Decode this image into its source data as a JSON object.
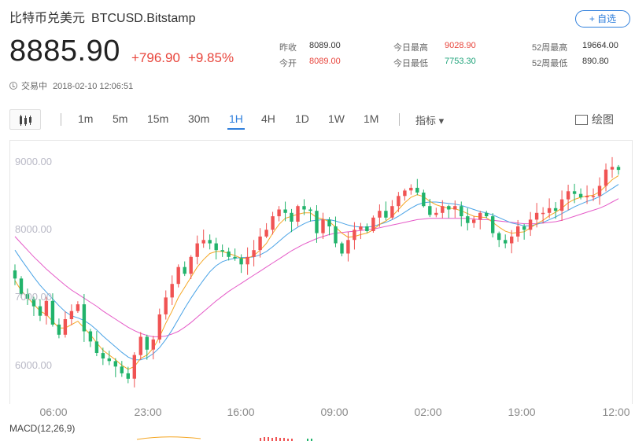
{
  "header": {
    "name": "比特币兑美元",
    "symbol": "BTCUSD.Bitstamp",
    "add_watchlist": "+ 自选"
  },
  "quote": {
    "price": "8885.90",
    "change": "+796.90",
    "change_pct": "+9.85%"
  },
  "stats": {
    "prev_close_label": "昨收",
    "prev_close": "8089.00",
    "open_label": "今开",
    "open": "8089.00",
    "day_high_label": "今日最高",
    "day_high": "9028.90",
    "day_low_label": "今日最低",
    "day_low": "7753.30",
    "week52_high_label": "52周最高",
    "week52_high": "19664.00",
    "week52_low_label": "52周最低",
    "week52_low": "890.80"
  },
  "status": {
    "state": "交易中",
    "timestamp": "2018-02-10 12:06:51"
  },
  "toolbar": {
    "timeframes": [
      "1m",
      "5m",
      "15m",
      "30m",
      "1H",
      "4H",
      "1D",
      "1W",
      "1M"
    ],
    "active": "1H",
    "indicator_label": "指标 ▾",
    "draw_label": "绘图"
  },
  "colors": {
    "up": "#f05353",
    "down": "#21b36b",
    "ma_fast": "#f5a623",
    "ma_mid": "#4aa3e6",
    "ma_slow": "#e55bc8",
    "accent": "#2f7fdc"
  },
  "chart_data": {
    "type": "candlestick",
    "y_ticks": [
      "9000.00",
      "8000.00",
      "7000.00",
      "6000.00"
    ],
    "x_ticks": [
      "06:00",
      "23:00",
      "16:00",
      "09:00",
      "02:00",
      "19:00",
      "12:00"
    ],
    "ylim": [
      5600,
      9200
    ],
    "closes": [
      7280,
      7050,
      6980,
      6870,
      6730,
      6950,
      6600,
      6450,
      6680,
      6800,
      6900,
      6500,
      6350,
      6180,
      6100,
      6060,
      5980,
      5880,
      5800,
      6150,
      6420,
      6230,
      6380,
      6750,
      7000,
      7200,
      7450,
      7350,
      7600,
      7800,
      7850,
      7800,
      7700,
      7680,
      7600,
      7580,
      7490,
      7600,
      7700,
      7900,
      8000,
      8200,
      8300,
      8250,
      8120,
      8350,
      8300,
      8280,
      7950,
      8150,
      8050,
      7800,
      7650,
      7850,
      8000,
      8050,
      7980,
      8180,
      8280,
      8180,
      8350,
      8500,
      8580,
      8620,
      8550,
      8350,
      8220,
      8250,
      8350,
      8300,
      8350,
      8200,
      8100,
      8150,
      8250,
      8200,
      7950,
      7850,
      7800,
      7900,
      8050,
      8000,
      8150,
      8250,
      8250,
      8320,
      8280,
      8450,
      8570,
      8530,
      8480,
      8500,
      8500,
      8650,
      8890,
      8930,
      8886
    ],
    "ma_fast": [
      7250,
      7100,
      7000,
      6900,
      6800,
      6750,
      6650,
      6550,
      6550,
      6600,
      6650,
      6550,
      6450,
      6330,
      6220,
      6150,
      6080,
      6000,
      5940,
      5980,
      6100,
      6150,
      6250,
      6420,
      6620,
      6800,
      7000,
      7150,
      7300,
      7450,
      7560,
      7650,
      7680,
      7680,
      7650,
      7620,
      7580,
      7580,
      7620,
      7700,
      7800,
      7950,
      8080,
      8170,
      8200,
      8230,
      8250,
      8250,
      8180,
      8160,
      8120,
      8040,
      7950,
      7890,
      7900,
      7930,
      7950,
      8000,
      8080,
      8130,
      8200,
      8300,
      8400,
      8480,
      8520,
      8490,
      8420,
      8370,
      8340,
      8320,
      8310,
      8280,
      8240,
      8200,
      8190,
      8180,
      8110,
      8040,
      7980,
      7950,
      7960,
      7970,
      8030,
      8090,
      8140,
      8210,
      8260,
      8320,
      8400,
      8450,
      8480,
      8500,
      8510,
      8560,
      8650,
      8740,
      8800
    ],
    "ma_mid": [
      7700,
      7560,
      7430,
      7300,
      7180,
      7080,
      6980,
      6880,
      6790,
      6730,
      6700,
      6660,
      6600,
      6520,
      6430,
      6350,
      6270,
      6190,
      6120,
      6080,
      6080,
      6110,
      6170,
      6260,
      6380,
      6520,
      6680,
      6840,
      6990,
      7130,
      7260,
      7380,
      7470,
      7530,
      7560,
      7580,
      7590,
      7590,
      7600,
      7630,
      7680,
      7750,
      7830,
      7910,
      7980,
      8040,
      8090,
      8130,
      8140,
      8150,
      8150,
      8130,
      8100,
      8070,
      8050,
      8040,
      8040,
      8050,
      8080,
      8110,
      8150,
      8200,
      8260,
      8320,
      8370,
      8400,
      8410,
      8410,
      8400,
      8390,
      8380,
      8360,
      8330,
      8300,
      8270,
      8250,
      8220,
      8180,
      8140,
      8100,
      8080,
      8060,
      8060,
      8080,
      8110,
      8150,
      8190,
      8240,
      8290,
      8340,
      8380,
      8420,
      8450,
      8490,
      8550,
      8610,
      8670
    ],
    "ma_slow": [
      7900,
      7800,
      7700,
      7600,
      7510,
      7420,
      7340,
      7260,
      7180,
      7110,
      7050,
      6990,
      6930,
      6870,
      6800,
      6740,
      6680,
      6620,
      6560,
      6510,
      6470,
      6440,
      6420,
      6420,
      6430,
      6460,
      6500,
      6560,
      6630,
      6710,
      6790,
      6870,
      6950,
      7020,
      7090,
      7150,
      7210,
      7270,
      7330,
      7390,
      7450,
      7510,
      7570,
      7630,
      7690,
      7740,
      7790,
      7830,
      7870,
      7900,
      7930,
      7950,
      7960,
      7970,
      7980,
      7990,
      8000,
      8010,
      8030,
      8050,
      8070,
      8090,
      8110,
      8130,
      8150,
      8160,
      8170,
      8170,
      8170,
      8170,
      8170,
      8170,
      8170,
      8160,
      8150,
      8150,
      8140,
      8130,
      8120,
      8110,
      8100,
      8090,
      8090,
      8090,
      8100,
      8110,
      8120,
      8140,
      8170,
      8200,
      8230,
      8260,
      8290,
      8320,
      8360,
      8410,
      8460
    ]
  },
  "macd_label": "MACD(12,26,9)"
}
